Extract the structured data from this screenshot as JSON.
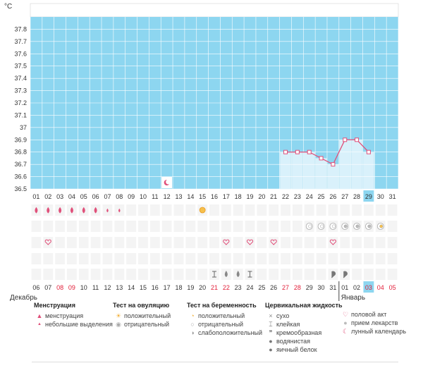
{
  "chart_data": {
    "type": "bar",
    "unit_label": "°C",
    "ylim": [
      36.5,
      37.9
    ],
    "yticks": [
      "37.8",
      "37.7",
      "37.6",
      "37.5",
      "37.4",
      "37.3",
      "37.2",
      "37.1",
      "37",
      "36.9",
      "36.8",
      "36.7",
      "36.6",
      "36.5"
    ],
    "x_top": [
      "01",
      "02",
      "03",
      "04",
      "05",
      "06",
      "07",
      "08",
      "09",
      "10",
      "11",
      "12",
      "13",
      "14",
      "15",
      "16",
      "17",
      "18",
      "19",
      "20",
      "21",
      "22",
      "23",
      "24",
      "25",
      "26",
      "27",
      "28",
      "29",
      "30",
      "31"
    ],
    "x_bottom": [
      "06",
      "07",
      "08",
      "09",
      "10",
      "11",
      "12",
      "13",
      "14",
      "15",
      "16",
      "17",
      "18",
      "19",
      "20",
      "21",
      "22",
      "23",
      "24",
      "25",
      "26",
      "27",
      "28",
      "29",
      "30",
      "31",
      "01",
      "02",
      "03",
      "04",
      "05"
    ],
    "x_bottom_red": [
      2,
      3,
      15,
      16,
      21,
      22,
      28,
      29,
      30
    ],
    "selected_top_index": 28,
    "selected_bottom_index": 28,
    "month_left": "Декабрь",
    "month_right": "Январь",
    "temperature_series": [
      {
        "day": "22",
        "value": 36.8
      },
      {
        "day": "23",
        "value": 36.8
      },
      {
        "day": "24",
        "value": 36.8
      },
      {
        "day": "25",
        "value": 36.75
      },
      {
        "day": "26",
        "value": 36.7
      },
      {
        "day": "27",
        "value": 36.9
      },
      {
        "day": "28",
        "value": 36.9
      },
      {
        "day": "29",
        "value": 36.8
      }
    ],
    "lunar_marker_day": "12",
    "grid": true
  },
  "rows": {
    "menstruation": [
      "big",
      "big",
      "big",
      "big",
      "big",
      "big",
      "small",
      "small"
    ],
    "ovulation_positive_day": "15",
    "pregnancy": [
      {
        "day": "24",
        "type": "negative"
      },
      {
        "day": "25",
        "type": "negative"
      },
      {
        "day": "26",
        "type": "negative"
      },
      {
        "day": "27",
        "type": "weak"
      },
      {
        "day": "28",
        "type": "weak"
      },
      {
        "day": "29",
        "type": "weak"
      },
      {
        "day": "30",
        "type": "positive"
      }
    ],
    "intercourse_days": [
      "02",
      "17",
      "19",
      "21",
      "26"
    ],
    "fluid": [
      {
        "day": "16",
        "type": "sticky"
      },
      {
        "day": "17",
        "type": "watery"
      },
      {
        "day": "18",
        "type": "watery"
      },
      {
        "day": "19",
        "type": "sticky"
      },
      {
        "day": "26",
        "type": "creamy"
      },
      {
        "day": "27",
        "type": "creamy"
      }
    ]
  },
  "legend": {
    "menstruation": {
      "title": "Менструация",
      "items": [
        "менструация",
        "небольшие выделения"
      ]
    },
    "ovulation": {
      "title": "Тест на овуляцию",
      "items": [
        "положительный",
        "отрицательный"
      ]
    },
    "pregnancy": {
      "title": "Тест на беременность",
      "items": [
        "положительный",
        "отрицательный",
        "слабоположительный"
      ]
    },
    "fluid": {
      "title": "Цервикальная жидкость",
      "items": [
        "сухо",
        "клейкая",
        "кремообразная",
        "водянистая",
        "яичный белок"
      ]
    },
    "other": {
      "items": [
        "половой акт",
        "прием лекарств",
        "лунный календарь"
      ]
    }
  },
  "colors": {
    "plot": "#8dd6f0",
    "bar": "#d9f1fb",
    "line": "#e0507a",
    "red": "#e2213b",
    "grid": "#ffffff",
    "selected": "#8dd6f0"
  },
  "icons": {
    "menstruation": "drop-icon",
    "ovulation": "sun-icon",
    "pregnancy": "test-icon",
    "intercourse": "heart-icon",
    "medication": "pill-icon",
    "lunar": "moon-icon"
  }
}
